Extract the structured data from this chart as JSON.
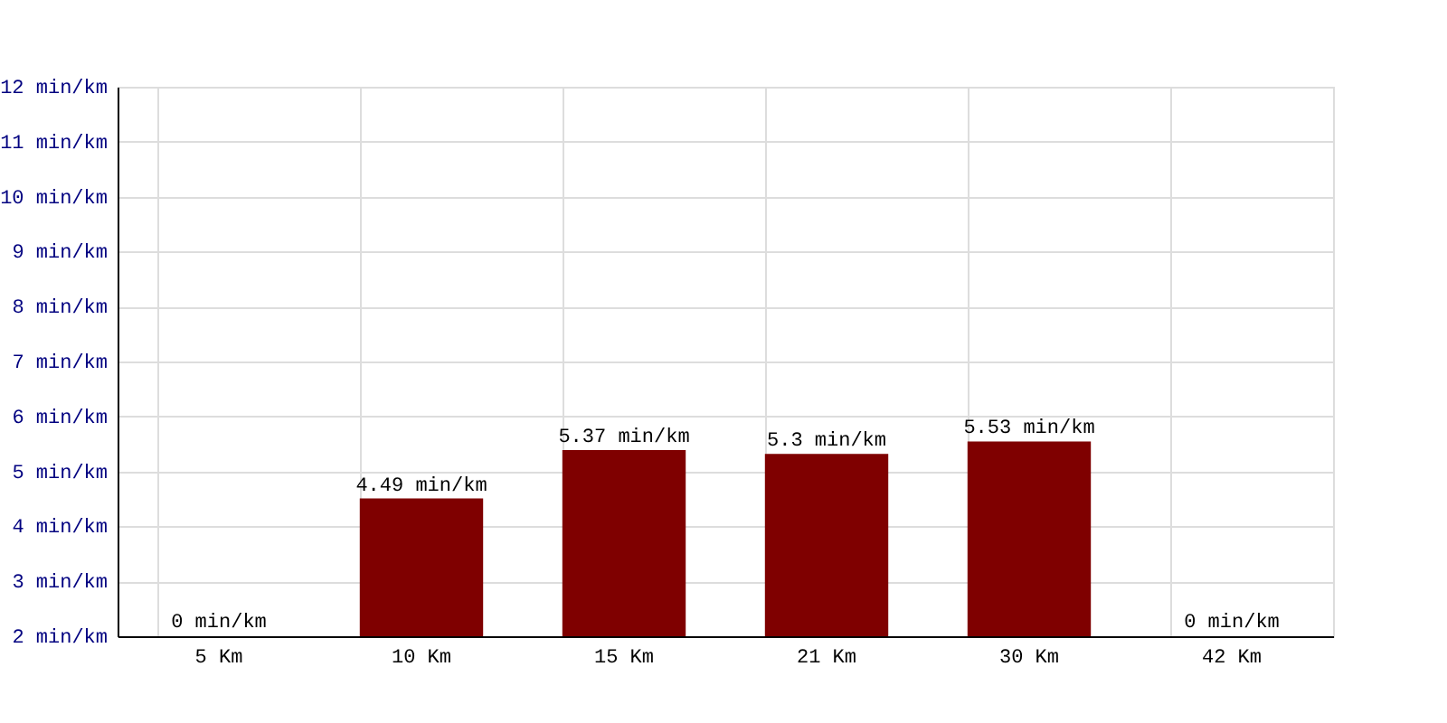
{
  "chart_data": {
    "type": "bar",
    "categories": [
      "5 Km",
      "10 Km",
      "15 Km",
      "21 Km",
      "30 Km",
      "42 Km"
    ],
    "values": [
      null,
      4.49,
      5.37,
      5.3,
      5.53,
      null
    ],
    "value_labels": [
      "0 min/km",
      "4.49 min/km",
      "5.37 min/km",
      "5.3 min/km",
      "5.53 min/km",
      "0 min/km"
    ],
    "color": "#7f0000",
    "ylim": [
      2,
      12
    ],
    "yticks": [
      {
        "value": 2,
        "label": "2 min/km"
      },
      {
        "value": 3,
        "label": "3 min/km"
      },
      {
        "value": 4,
        "label": "4 min/km"
      },
      {
        "value": 5,
        "label": "5 min/km"
      },
      {
        "value": 6,
        "label": "6 min/km"
      },
      {
        "value": 7,
        "label": "7 min/km"
      },
      {
        "value": 8,
        "label": "8 min/km"
      },
      {
        "value": 9,
        "label": "9 min/km"
      },
      {
        "value": 10,
        "label": "10 min/km"
      },
      {
        "value": 11,
        "label": "11 min/km"
      },
      {
        "value": 12,
        "label": "12 min/km"
      }
    ],
    "grid": true
  }
}
